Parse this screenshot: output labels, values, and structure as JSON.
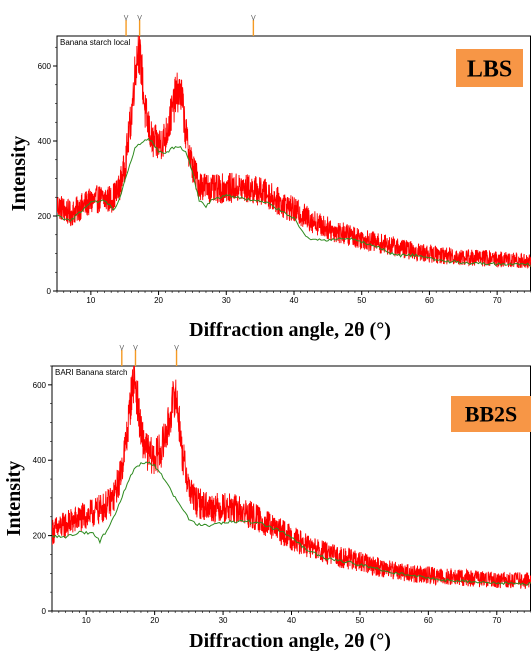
{
  "chart_data": [
    {
      "type": "line",
      "panel_label": "LBS",
      "inner_title": "Banana starch local",
      "xlabel": "Diffraction angle, 2θ (°)",
      "ylabel": "Intensity",
      "xlim": [
        5,
        75
      ],
      "ylim": [
        0,
        680
      ],
      "xticks": [
        10,
        20,
        30,
        40,
        50,
        60,
        70
      ],
      "yticks": [
        0,
        200,
        400,
        600
      ],
      "peak_markers": [
        15.2,
        17.2,
        34.0
      ],
      "series": [
        {
          "color": "#ff0000",
          "noise": 42,
          "x": [
            5,
            7,
            9,
            11,
            13,
            14,
            15,
            16,
            16.5,
            17,
            17.5,
            18,
            19,
            20,
            21,
            22,
            22.5,
            23,
            23.5,
            24,
            25,
            26,
            28,
            30,
            32,
            34,
            36,
            38,
            40,
            42,
            44,
            46,
            48,
            50,
            52,
            55,
            58,
            60,
            62,
            65,
            68,
            70,
            72,
            75
          ],
          "y": [
            230,
            205,
            230,
            245,
            245,
            265,
            330,
            470,
            580,
            650,
            590,
            480,
            400,
            390,
            410,
            480,
            520,
            535,
            510,
            420,
            330,
            285,
            270,
            275,
            275,
            270,
            260,
            235,
            215,
            195,
            175,
            160,
            150,
            140,
            130,
            118,
            105,
            100,
            95,
            90,
            88,
            85,
            82,
            80
          ]
        },
        {
          "color": "#2e8b20",
          "noise": 0,
          "x": [
            5,
            7,
            8,
            10,
            12,
            13.5,
            14.5,
            15.5,
            16.5,
            18,
            19,
            20,
            21,
            22,
            23,
            24,
            25,
            26,
            27,
            28,
            30,
            33,
            36,
            38,
            40,
            42,
            45,
            48,
            52,
            55,
            58,
            62,
            66,
            70,
            75
          ],
          "y": [
            200,
            185,
            205,
            235,
            240,
            215,
            260,
            320,
            380,
            405,
            400,
            370,
            365,
            380,
            385,
            370,
            320,
            240,
            225,
            245,
            255,
            245,
            235,
            215,
            195,
            140,
            135,
            140,
            120,
            95,
            95,
            80,
            75,
            72,
            70
          ]
        }
      ]
    },
    {
      "type": "line",
      "panel_label": "BB2S",
      "inner_title": "BARI Banana starch",
      "xlabel": "Diffraction angle, 2θ (°)",
      "ylabel": "Intensity",
      "xlim": [
        5,
        75
      ],
      "ylim": [
        0,
        650
      ],
      "xticks": [
        10,
        20,
        30,
        40,
        50,
        60,
        70
      ],
      "yticks": [
        0,
        200,
        400,
        600
      ],
      "peak_markers": [
        15.2,
        17.2,
        23.2
      ],
      "series": [
        {
          "color": "#ff0000",
          "noise": 42,
          "x": [
            5,
            7,
            9,
            11,
            13,
            14,
            15,
            16,
            16.5,
            17,
            17.5,
            18,
            19,
            20,
            21,
            22,
            22.5,
            23,
            23.5,
            24,
            25,
            26,
            28,
            30,
            32,
            34,
            36,
            38,
            40,
            42,
            44,
            46,
            48,
            50,
            52,
            55,
            58,
            60,
            62,
            65,
            68,
            70,
            72,
            75
          ],
          "y": [
            210,
            230,
            245,
            260,
            280,
            300,
            360,
            470,
            560,
            620,
            560,
            470,
            420,
            405,
            430,
            490,
            540,
            580,
            520,
            420,
            330,
            290,
            275,
            275,
            270,
            255,
            235,
            215,
            195,
            175,
            160,
            148,
            140,
            130,
            120,
            108,
            98,
            95,
            92,
            88,
            85,
            83,
            82,
            80
          ]
        },
        {
          "color": "#2e8b20",
          "noise": 0,
          "x": [
            5,
            7,
            9,
            11,
            12,
            13,
            14,
            15,
            16,
            17,
            18,
            19,
            20,
            21,
            22,
            23,
            24,
            25,
            26,
            27,
            28,
            30,
            33,
            36,
            38,
            40,
            42,
            45,
            48,
            52,
            55,
            58,
            62,
            66,
            70,
            75
          ],
          "y": [
            200,
            195,
            210,
            205,
            185,
            215,
            250,
            290,
            340,
            375,
            390,
            395,
            385,
            360,
            330,
            300,
            270,
            245,
            230,
            230,
            225,
            235,
            240,
            230,
            215,
            195,
            165,
            140,
            130,
            115,
            100,
            95,
            82,
            78,
            75,
            72
          ]
        }
      ]
    }
  ]
}
